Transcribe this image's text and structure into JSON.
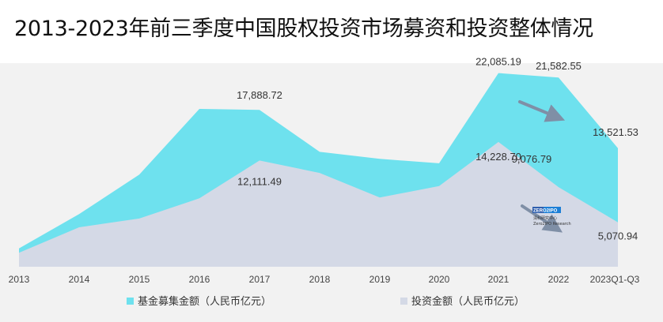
{
  "title": "2013-2023年前三季度中国股权投资市场募资和投资整体情况",
  "chart_data": {
    "type": "area",
    "x": [
      "2013",
      "2014",
      "2015",
      "2016",
      "2017",
      "2018",
      "2019",
      "2020",
      "2021",
      "2022",
      "2023Q1-Q3"
    ],
    "series": [
      {
        "name": "基金募集金额（人民币亿元）",
        "color": "#6ee1ee",
        "values": [
          2100,
          6000,
          10500,
          18000,
          17888.72,
          13100,
          12300,
          11800,
          22085.19,
          21582.55,
          13521.53
        ]
      },
      {
        "name": "投资金额（人民币亿元）",
        "color": "#d4d9e6",
        "values": [
          1600,
          4500,
          5500,
          7800,
          12111.49,
          10700,
          7900,
          9200,
          14228.7,
          9076.79,
          5070.94
        ]
      }
    ],
    "data_labels": {
      "fund": [
        {
          "index": 4,
          "text": "17,888.72"
        },
        {
          "index": 8,
          "text": "22,085.19"
        },
        {
          "index": 9,
          "text": "21,582.55"
        },
        {
          "index": 10,
          "text": "13,521.53"
        }
      ],
      "invest": [
        {
          "index": 4,
          "text": "12,111.49"
        },
        {
          "index": 8,
          "text": "14,228.70"
        },
        {
          "index": 9,
          "text": "9,076.79"
        },
        {
          "index": 10,
          "text": "5,070.94"
        }
      ]
    },
    "ylim": [
      0,
      22500
    ],
    "legend_position": "bottom",
    "grid": false,
    "trend_arrow_color": "#7f8fa6"
  },
  "watermark": {
    "logo": "ZERO2IPO",
    "line1": "清科研究中心",
    "line2": "Zero2IPO Research"
  }
}
